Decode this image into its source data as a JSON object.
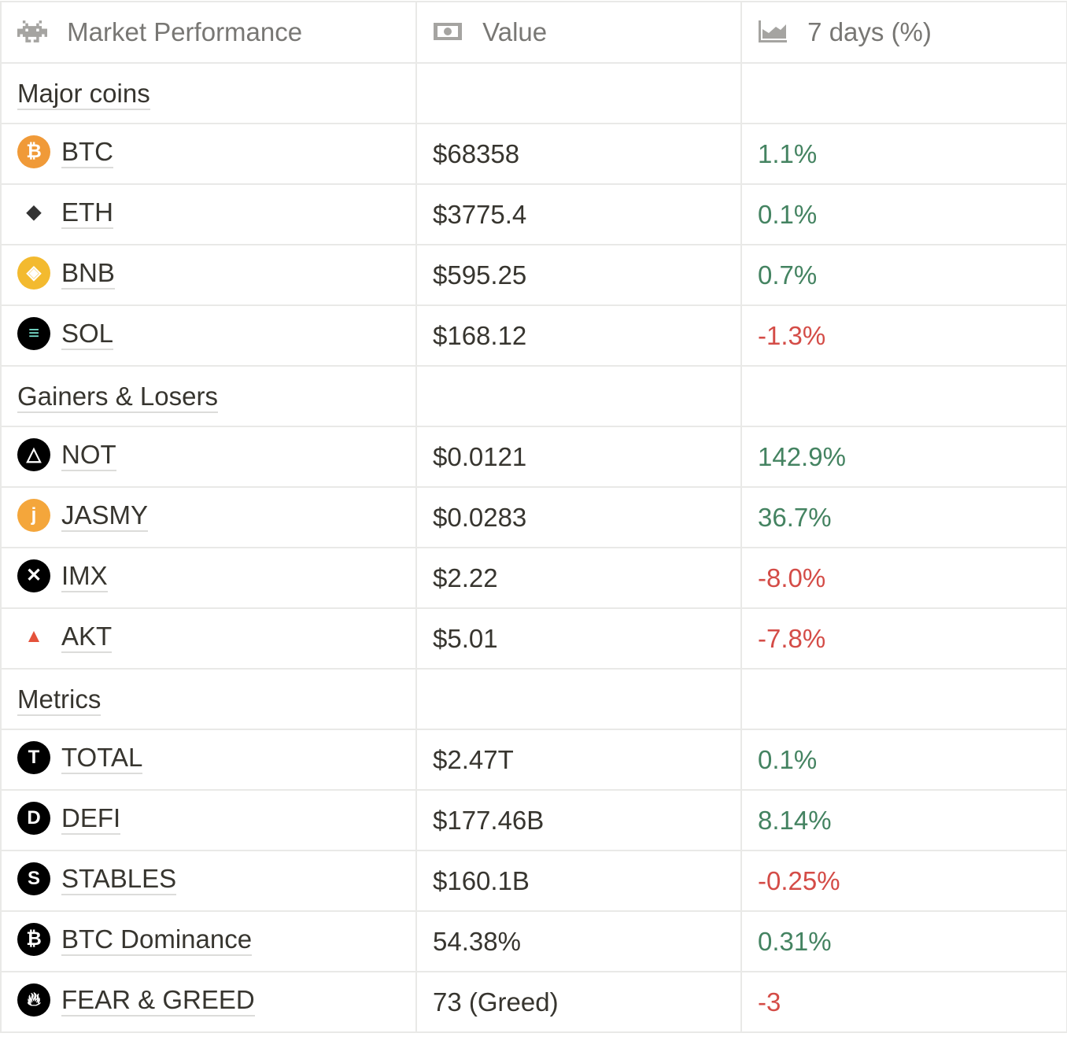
{
  "header": {
    "col1": {
      "label": "Market Performance",
      "icon": "space-invader-icon"
    },
    "col2": {
      "label": "Value",
      "icon": "banknote-icon"
    },
    "col3": {
      "label": "7 days (%)",
      "icon": "area-chart-icon"
    }
  },
  "colors": {
    "positive": "#448361",
    "negative": "#d44c47"
  },
  "sections": [
    {
      "title": "Major coins",
      "rows": [
        {
          "name": "BTC",
          "value": "$68358",
          "change": "1.1%",
          "trend": "pos",
          "icon": "bitcoin-icon"
        },
        {
          "name": "ETH",
          "value": "$3775.4",
          "change": "0.1%",
          "trend": "pos",
          "icon": "ethereum-icon"
        },
        {
          "name": "BNB",
          "value": "$595.25",
          "change": "0.7%",
          "trend": "pos",
          "icon": "bnb-icon"
        },
        {
          "name": "SOL",
          "value": "$168.12",
          "change": "-1.3%",
          "trend": "neg",
          "icon": "solana-icon"
        }
      ]
    },
    {
      "title": "Gainers & Losers",
      "rows": [
        {
          "name": "NOT",
          "value": "$0.0121",
          "change": "142.9%",
          "trend": "pos",
          "icon": "notcoin-icon"
        },
        {
          "name": "JASMY",
          "value": "$0.0283",
          "change": "36.7%",
          "trend": "pos",
          "icon": "jasmy-icon"
        },
        {
          "name": "IMX",
          "value": "$2.22",
          "change": "-8.0%",
          "trend": "neg",
          "icon": "immutable-x-icon"
        },
        {
          "name": "AKT",
          "value": "$5.01",
          "change": "-7.8%",
          "trend": "neg",
          "icon": "akash-icon"
        }
      ]
    },
    {
      "title": "Metrics",
      "rows": [
        {
          "name": "TOTAL",
          "value": "$2.47T",
          "change": "0.1%",
          "trend": "pos",
          "icon": "letter-t-icon"
        },
        {
          "name": "DEFI",
          "value": "$177.46B",
          "change": "8.14%",
          "trend": "pos",
          "icon": "letter-d-icon"
        },
        {
          "name": "STABLES",
          "value": "$160.1B",
          "change": "-0.25%",
          "trend": "neg",
          "icon": "letter-s-icon"
        },
        {
          "name": "BTC Dominance",
          "value": "54.38%",
          "change": "0.31%",
          "trend": "pos",
          "icon": "bitcoin-dark-icon"
        },
        {
          "name": "FEAR & GREED",
          "value": "73 (Greed)",
          "change": "-3",
          "trend": "neg",
          "icon": "flame-icon"
        }
      ]
    }
  ]
}
